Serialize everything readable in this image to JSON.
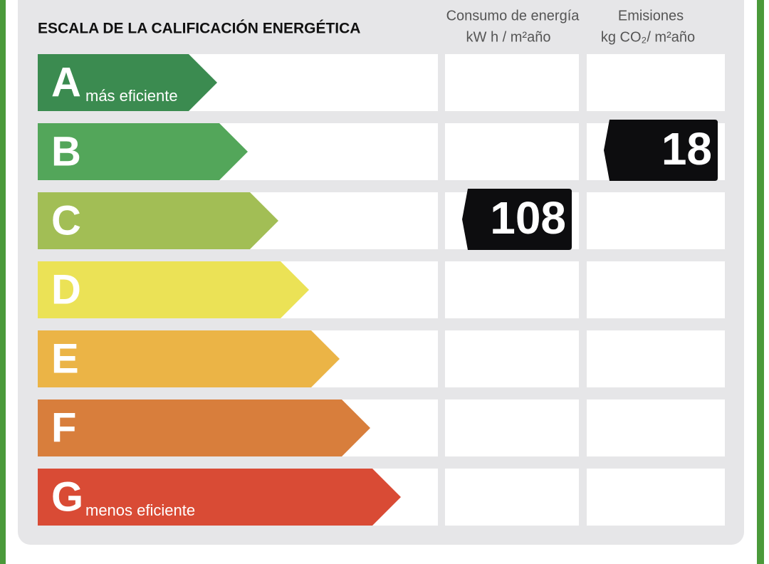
{
  "header": {
    "title": "ESCALA DE LA CALIFICACIÓN ENERGÉTICA",
    "columns": [
      {
        "name": "Consumo de energía",
        "unit": "kW h / m²año",
        "rating": "C",
        "value": 108
      },
      {
        "name": "Emisiones",
        "unit": "kg CO₂/ m²año",
        "rating": "B",
        "value": 18
      }
    ]
  },
  "rows": [
    {
      "letter": "A",
      "note": "más eficiente",
      "color": "#3b8b50"
    },
    {
      "letter": "B",
      "color": "#53a65a"
    },
    {
      "letter": "C",
      "color": "#a2be55"
    },
    {
      "letter": "D",
      "color": "#ebe256"
    },
    {
      "letter": "E",
      "color": "#ebb446"
    },
    {
      "letter": "F",
      "color": "#d87e3c"
    },
    {
      "letter": "G",
      "note": "menos eficiente",
      "color": "#d94b35"
    }
  ]
}
